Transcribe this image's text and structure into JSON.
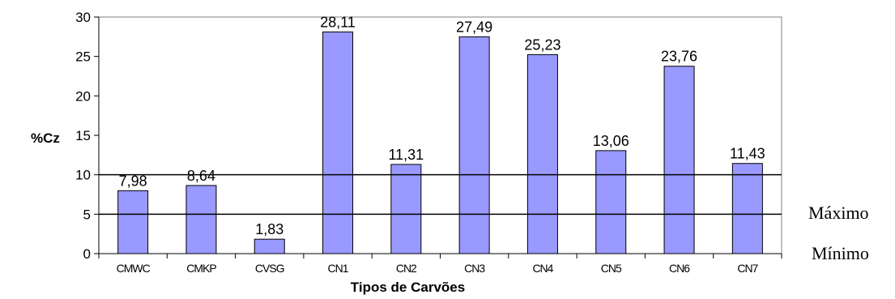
{
  "chart_data": {
    "type": "bar",
    "title": "",
    "xlabel": "Tipos de Carvões",
    "ylabel": "%Cz",
    "ylim": [
      0,
      30
    ],
    "yticks": [
      0,
      5,
      10,
      15,
      20,
      25,
      30
    ],
    "grid": false,
    "categories": [
      "CMWC",
      "CMKP",
      "CVSG",
      "CN1",
      "CN2",
      "CN3",
      "CN4",
      "CN5",
      "CN6",
      "CN7"
    ],
    "values": [
      7.98,
      8.64,
      1.83,
      28.11,
      11.31,
      27.49,
      25.23,
      13.06,
      23.76,
      11.43
    ],
    "data_labels": [
      "7,98",
      "8,64",
      "1,83",
      "28,11",
      "11,31",
      "27,49",
      "25,23",
      "13,06",
      "23,76",
      "11,43"
    ],
    "bar_color": "#9999ff",
    "reference_lines": [
      {
        "label": "Máximo",
        "value": 10
      },
      {
        "label": "Mínimo",
        "value": 5
      }
    ]
  }
}
